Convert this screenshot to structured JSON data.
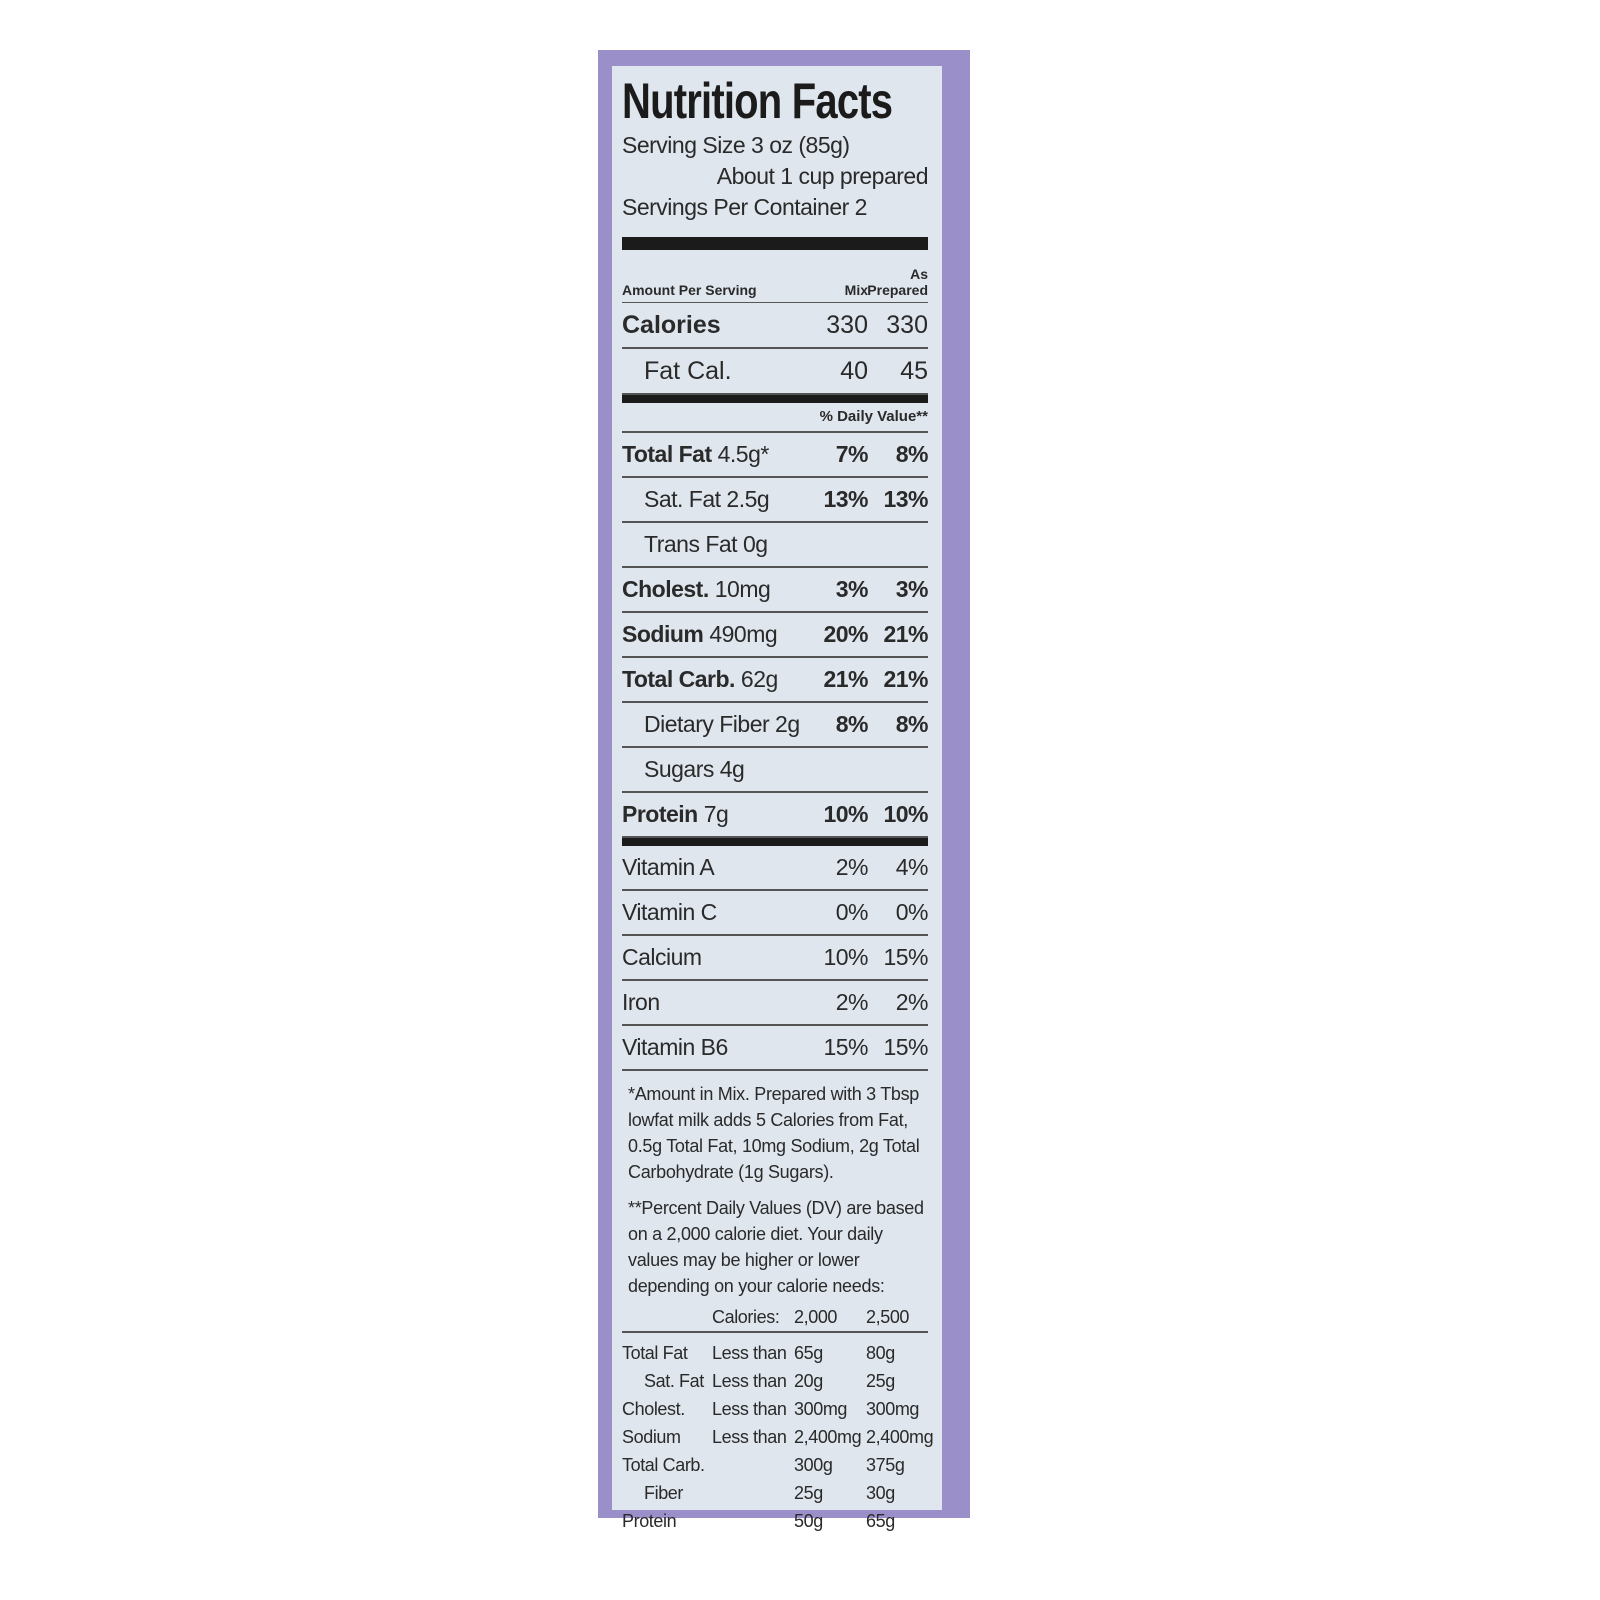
{
  "header": {
    "title": "Nutrition Facts",
    "serving_size": "Serving Size 3 oz (85g)",
    "serving_note": "About 1 cup prepared",
    "servings": "Servings Per Container 2"
  },
  "columns": {
    "amount": "Amount Per Serving",
    "mix": "Mix",
    "prepared": "As Prepared"
  },
  "calories": [
    {
      "label": "Calories",
      "mix": "330",
      "prepared": "330"
    },
    {
      "label": "Fat Cal.",
      "mix": "40",
      "prepared": "45"
    }
  ],
  "dv_header": "% Daily Value**",
  "nutrients": [
    {
      "name": "Total Fat",
      "amount": "4.5g*",
      "mix": "7%",
      "prepared": "8%"
    },
    {
      "name": "Sat. Fat 2.5g",
      "mix": "13%",
      "prepared": "13%"
    },
    {
      "name": "Trans Fat 0g"
    },
    {
      "name": "Cholest.",
      "amount": "10mg",
      "mix": "3%",
      "prepared": "3%"
    },
    {
      "name": "Sodium",
      "amount": "490mg",
      "mix": "20%",
      "prepared": "21%"
    },
    {
      "name": "Total Carb.",
      "amount": "62g",
      "mix": "21%",
      "prepared": "21%"
    },
    {
      "name": "Dietary Fiber 2g",
      "mix": "8%",
      "prepared": "8%"
    },
    {
      "name": "Sugars 4g"
    },
    {
      "name": "Protein",
      "amount": "7g",
      "mix": "10%",
      "prepared": "10%"
    }
  ],
  "vitamins": [
    {
      "name": "Vitamin A",
      "mix": "2%",
      "prepared": "4%"
    },
    {
      "name": "Vitamin C",
      "mix": "0%",
      "prepared": "0%"
    },
    {
      "name": "Calcium",
      "mix": "10%",
      "prepared": "15%"
    },
    {
      "name": "Iron",
      "mix": "2%",
      "prepared": "2%"
    },
    {
      "name": "Vitamin B6",
      "mix": "15%",
      "prepared": "15%"
    }
  ],
  "footnotes": [
    "*Amount in Mix. Prepared with 3 Tbsp lowfat milk adds 5 Calories from Fat, 0.5g Total Fat, 10mg Sodium, 2g Total Carbohydrate (1g Sugars).",
    "**Percent Daily Values (DV) are based on a 2,000 calorie diet. Your daily values may be higher or lower depending on your calorie needs:"
  ],
  "dv_table": {
    "header": {
      "label": "Calories:",
      "c2000": "2,000",
      "c2500": "2,500"
    },
    "rows": [
      {
        "name": "Total Fat",
        "limit": "Less than",
        "c2000": "65g",
        "c2500": "80g"
      },
      {
        "name": "Sat. Fat",
        "limit": "Less than",
        "c2000": "20g",
        "c2500": "25g"
      },
      {
        "name": "Cholest.",
        "limit": "Less than",
        "c2000": "300mg",
        "c2500": "300mg"
      },
      {
        "name": "Sodium",
        "limit": "Less than",
        "c2000": "2,400mg",
        "c2500": "2,400mg"
      },
      {
        "name": "Total Carb.",
        "c2000": "300g",
        "c2500": "375g"
      },
      {
        "name": "Fiber",
        "c2000": "25g",
        "c2500": "30g"
      },
      {
        "name": "Protein",
        "c2000": "50g",
        "c2500": "65g"
      }
    ]
  }
}
